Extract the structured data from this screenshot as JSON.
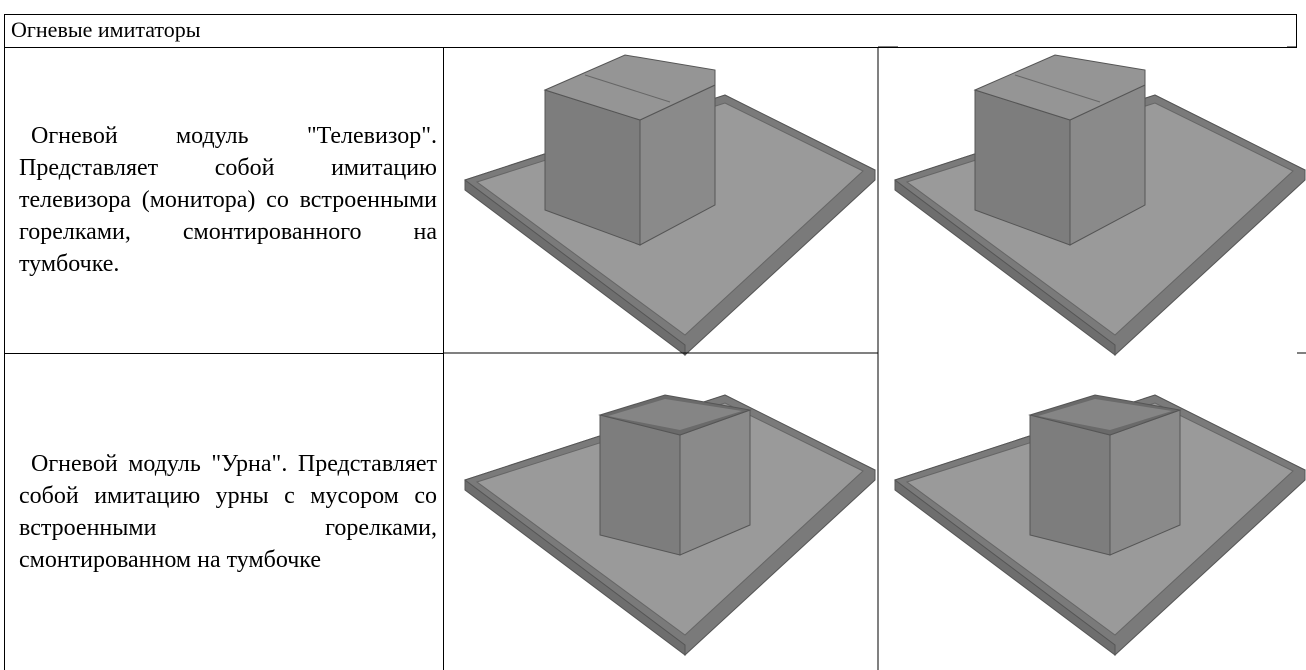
{
  "table": {
    "header": {
      "title": "Огневые имитаторы"
    },
    "rows": [
      {
        "description": "Огневой модуль \"Телевизор\". Представляет собой имитацию телевизора (монитора) со встроенными горелками, смонтированного на тумбочке."
      },
      {
        "description": "Огневой модуль \"Урна\". Представляет собой имитацию урны с мусором со встроенными горелками, смонтированном на тумбочке"
      }
    ]
  }
}
